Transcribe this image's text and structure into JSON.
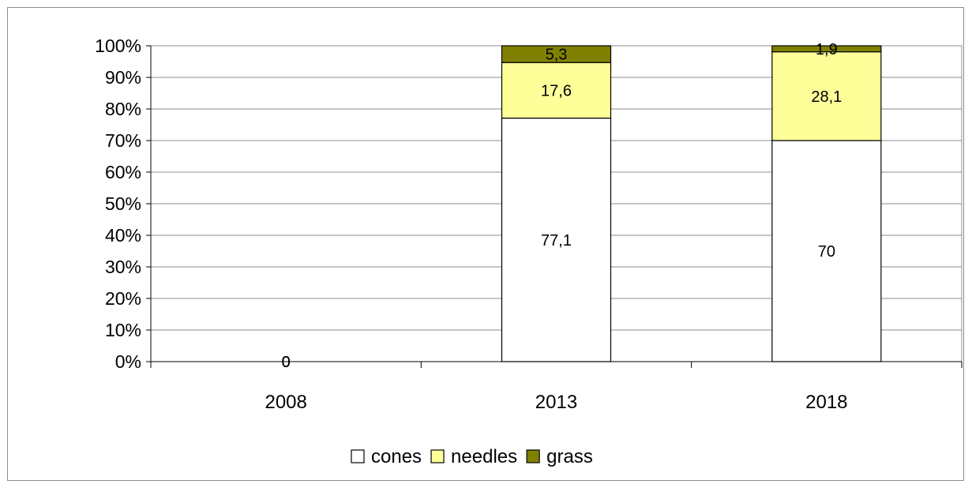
{
  "chart_data": {
    "type": "bar",
    "stacked": true,
    "percent_stacked": true,
    "categories": [
      "2008",
      "2013",
      "2018"
    ],
    "series": [
      {
        "name": "cones",
        "values": [
          0,
          77.1,
          70
        ],
        "color": "#ffffff"
      },
      {
        "name": "needles",
        "values": [
          0,
          17.6,
          28.1
        ],
        "color": "#ffff99"
      },
      {
        "name": "grass",
        "values": [
          0,
          5.3,
          1.9
        ],
        "color": "#808000"
      }
    ],
    "data_labels": [
      [
        "0",
        "77,1",
        "70"
      ],
      [
        "0",
        "17,6",
        "28,1"
      ],
      [
        "0",
        "5,3",
        "1,9"
      ]
    ],
    "y_ticks": [
      "0%",
      "10%",
      "20%",
      "30%",
      "40%",
      "50%",
      "60%",
      "70%",
      "80%",
      "90%",
      "100%"
    ],
    "ylim": [
      0,
      100
    ],
    "grid": true,
    "legend_position": "bottom",
    "title": "",
    "xlabel": "",
    "ylabel": ""
  }
}
